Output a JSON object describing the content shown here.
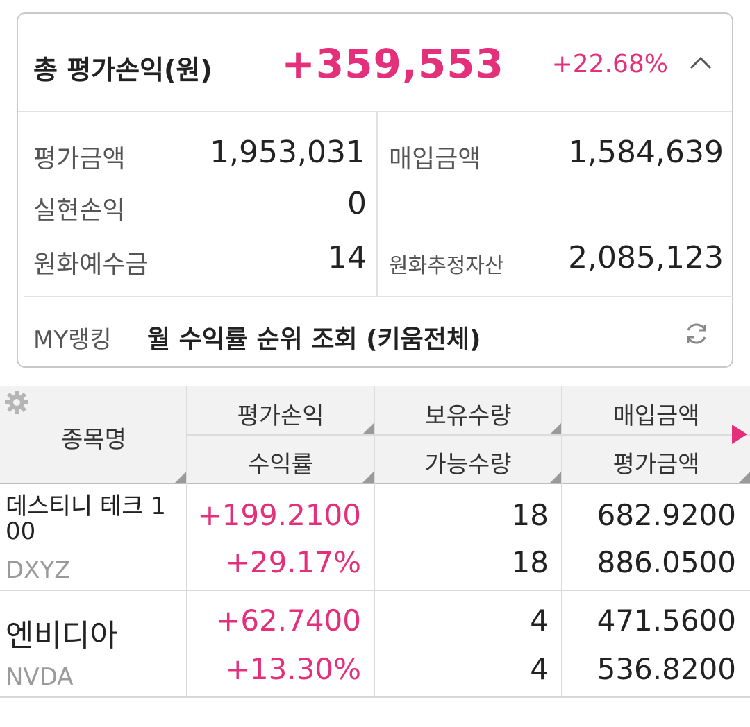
{
  "summary": {
    "total_label": "총 평가손익(원)",
    "total_value": "+359,553",
    "total_rate": "+22.68%",
    "eval_amount_label": "평가금액",
    "eval_amount_value": "1,953,031",
    "purchase_amount_label": "매입금액",
    "purchase_amount_value": "1,584,639",
    "realized_label": "실현손익",
    "realized_value": "0",
    "krw_deposit_label": "원화예수금",
    "krw_deposit_value": "14",
    "krw_estimated_assets_label": "원화추정자산",
    "krw_estimated_assets_value": "2,085,123"
  },
  "ranking": {
    "label": "MY랭킹",
    "text": "월 수익률 순위 조회 (키움전체)"
  },
  "table": {
    "headers": {
      "name": "종목명",
      "profit": "평가손익",
      "return_rate": "수익률",
      "holding_qty": "보유수량",
      "available_qty": "가능수량",
      "purchase_amount": "매입금액",
      "eval_amount": "평가금액"
    },
    "rows": [
      {
        "name": "데스티니 테크 1\n00",
        "code": "DXYZ",
        "profit": "+199.2100",
        "return_rate": "+29.17%",
        "holding_qty": "18",
        "available_qty": "18",
        "purchase_amount": "682.9200",
        "eval_amount": "886.0500"
      },
      {
        "name": "엔비디아",
        "code": "NVDA",
        "profit": "+62.7400",
        "return_rate": "+13.30%",
        "holding_qty": "4",
        "available_qty": "4",
        "purchase_amount": "471.5600",
        "eval_amount": "536.8200"
      }
    ]
  },
  "colors": {
    "positive": "#e4307a",
    "border": "#c9c9c9",
    "header_bg": "#f2f2f2"
  }
}
